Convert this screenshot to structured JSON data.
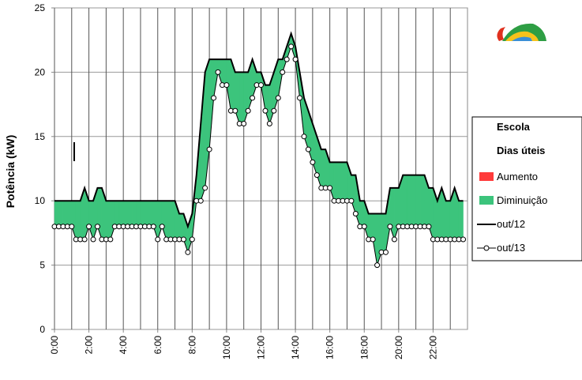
{
  "chart_data": {
    "type": "line",
    "y_label": "Potência (kW)",
    "legend_title": [
      "Escola",
      "Dias úteis"
    ],
    "ylim": [
      0,
      25
    ],
    "yticks": [
      0,
      5,
      10,
      15,
      20,
      25
    ],
    "grid": true,
    "xlim": [
      0,
      24
    ],
    "xticks": [
      {
        "value": 0,
        "label": "0:00"
      },
      {
        "value": 2,
        "label": "2:00"
      },
      {
        "value": 4,
        "label": "4:00"
      },
      {
        "value": 6,
        "label": "6:00"
      },
      {
        "value": 8,
        "label": "8:00"
      },
      {
        "value": 10,
        "label": "10:00"
      },
      {
        "value": 12,
        "label": "12:00"
      },
      {
        "value": 14,
        "label": "14:00"
      },
      {
        "value": 16,
        "label": "16:00"
      },
      {
        "value": 18,
        "label": "18:00"
      },
      {
        "value": 20,
        "label": "20:00"
      },
      {
        "value": 22,
        "label": "22:00"
      }
    ],
    "xminorticks": [
      1,
      3,
      5,
      7,
      9,
      11,
      13,
      15,
      17,
      19,
      21,
      23
    ],
    "x": [
      0,
      0.25,
      0.5,
      0.75,
      1,
      1.25,
      1.5,
      1.75,
      2,
      2.25,
      2.5,
      2.75,
      3,
      3.25,
      3.5,
      3.75,
      4,
      4.25,
      4.5,
      4.75,
      5,
      5.25,
      5.5,
      5.75,
      6,
      6.25,
      6.5,
      6.75,
      7,
      7.25,
      7.5,
      7.75,
      8,
      8.25,
      8.5,
      8.75,
      9,
      9.25,
      9.5,
      9.75,
      10,
      10.25,
      10.5,
      10.75,
      11,
      11.25,
      11.5,
      11.75,
      12,
      12.25,
      12.5,
      12.75,
      13,
      13.25,
      13.5,
      13.75,
      14,
      14.25,
      14.5,
      14.75,
      15,
      15.25,
      15.5,
      15.75,
      16,
      16.25,
      16.5,
      16.75,
      17,
      17.25,
      17.5,
      17.75,
      18,
      18.25,
      18.5,
      18.75,
      19,
      19.25,
      19.5,
      19.75,
      20,
      20.25,
      20.5,
      20.75,
      21,
      21.25,
      21.5,
      21.75,
      22,
      22.25,
      22.5,
      22.75,
      23,
      23.25,
      23.5,
      23.75
    ],
    "fills": [
      {
        "name": "Aumento",
        "color": "#ff3b3b"
      },
      {
        "name": "Diminuição",
        "color": "#3cc47c"
      }
    ],
    "series": [
      {
        "name": "out/12",
        "color": "#000000",
        "marker": false,
        "values": [
          10,
          10,
          10,
          10,
          10,
          10,
          10,
          11,
          10,
          10,
          11,
          11,
          10,
          10,
          10,
          10,
          10,
          10,
          10,
          10,
          10,
          10,
          10,
          10,
          10,
          10,
          10,
          10,
          10,
          9,
          9,
          8,
          9,
          12,
          16,
          20,
          21,
          21,
          21,
          21,
          21,
          21,
          20,
          20,
          20,
          20,
          21,
          20,
          20,
          19,
          19,
          20,
          21,
          21,
          22,
          23,
          22,
          20,
          18,
          17,
          16,
          15,
          14,
          14,
          13,
          13,
          13,
          13,
          13,
          12,
          12,
          10,
          10,
          9,
          9,
          9,
          9,
          9,
          11,
          11,
          11,
          12,
          12,
          12,
          12,
          12,
          12,
          11,
          11,
          10,
          11,
          10,
          10,
          11,
          10,
          10
        ]
      },
      {
        "name": "out/13",
        "color": "#000000",
        "marker": true,
        "values": [
          8,
          8,
          8,
          8,
          8,
          7,
          7,
          7,
          8,
          7,
          8,
          7,
          7,
          7,
          8,
          8,
          8,
          8,
          8,
          8,
          8,
          8,
          8,
          8,
          7,
          8,
          7,
          7,
          7,
          7,
          7,
          6,
          7,
          10,
          10,
          11,
          14,
          18,
          20,
          19,
          19,
          17,
          17,
          16,
          16,
          17,
          18,
          19,
          19,
          17,
          16,
          17,
          18,
          20,
          21,
          22,
          21,
          18,
          15,
          14,
          13,
          12,
          11,
          11,
          11,
          10,
          10,
          10,
          10,
          10,
          9,
          8,
          8,
          7,
          7,
          5,
          6,
          6,
          8,
          7,
          8,
          8,
          8,
          8,
          8,
          8,
          8,
          8,
          7,
          7,
          7,
          7,
          7,
          7,
          7,
          7
        ]
      }
    ]
  }
}
